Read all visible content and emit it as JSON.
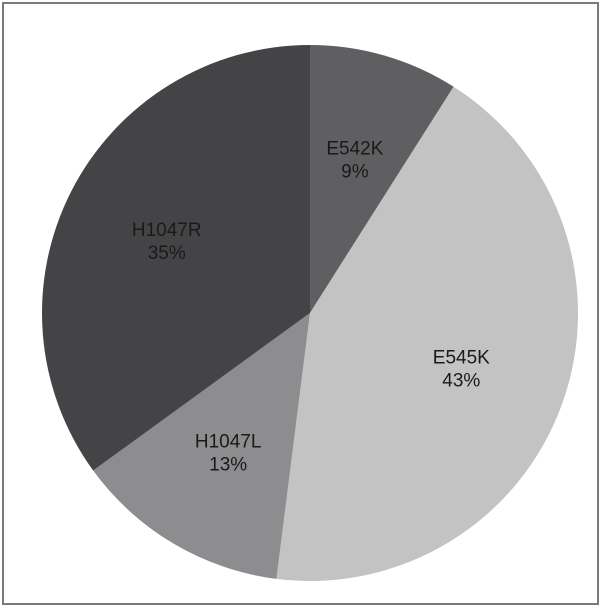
{
  "chart_data": {
    "type": "pie",
    "title": "",
    "slices": [
      {
        "label": "E542K",
        "value": 9,
        "value_label": "9%",
        "color": "#5f5f62",
        "text_color": "#1a1a1a"
      },
      {
        "label": "E545K",
        "value": 43,
        "value_label": "43%",
        "color": "#c3c3c3",
        "text_color": "#1a1a1a"
      },
      {
        "label": "H1047L",
        "value": 13,
        "value_label": "13%",
        "color": "#8d8d8f",
        "text_color": "#1a1a1a"
      },
      {
        "label": "H1047R",
        "value": 35,
        "value_label": "35%",
        "color": "#444446",
        "text_color": "#1a1a1a"
      }
    ],
    "start_angle_deg": 0,
    "direction": "clockwise",
    "legend": "none"
  }
}
